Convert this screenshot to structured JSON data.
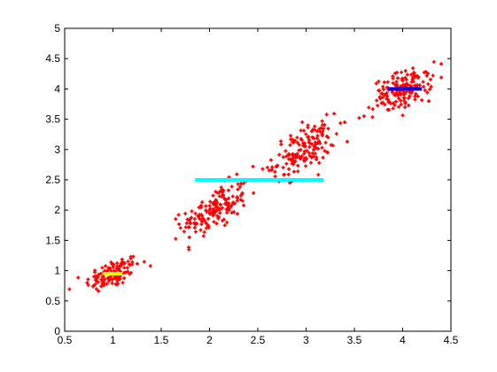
{
  "chart_data": {
    "type": "scatter",
    "xlim": [
      0.5,
      4.5
    ],
    "ylim": [
      0,
      5
    ],
    "xticks": [
      "0.5",
      "1",
      "1.5",
      "2",
      "2.5",
      "3",
      "3.5",
      "4",
      "4.5"
    ],
    "yticks": [
      "0",
      "0.5",
      "1",
      "1.5",
      "2",
      "2.5",
      "3",
      "3.5",
      "4",
      "4.5",
      "5"
    ],
    "grid": false,
    "legend": "none",
    "point_color": "#ff0000",
    "clusters": [
      {
        "center": [
          1.0,
          0.95
        ],
        "spread": [
          0.14,
          0.14
        ],
        "corr": 0.55,
        "count": 120,
        "x_range": [
          0.55,
          1.5
        ],
        "y_range": [
          0.45,
          1.55
        ]
      },
      {
        "center": [
          2.05,
          2.0
        ],
        "spread": [
          0.17,
          0.22
        ],
        "corr": 0.6,
        "count": 160,
        "x_range": [
          1.65,
          2.5
        ],
        "y_range": [
          1.35,
          2.75
        ]
      },
      {
        "center": [
          2.98,
          3.0
        ],
        "spread": [
          0.16,
          0.22
        ],
        "corr": 0.55,
        "count": 160,
        "x_range": [
          2.6,
          3.55
        ],
        "y_range": [
          2.45,
          3.6
        ]
      },
      {
        "center": [
          4.0,
          3.98
        ],
        "spread": [
          0.15,
          0.17
        ],
        "corr": 0.45,
        "count": 160,
        "x_range": [
          3.55,
          4.4
        ],
        "y_range": [
          3.45,
          4.7
        ]
      }
    ],
    "extra_points": [
      [
        2.45,
        2.72
      ],
      [
        2.55,
        2.68
      ],
      [
        2.38,
        2.48
      ],
      [
        3.55,
        3.52
      ],
      [
        3.6,
        3.55
      ],
      [
        3.4,
        3.45
      ]
    ],
    "segments": [
      {
        "x": [
          0.9,
          1.1
        ],
        "y": 0.95,
        "color": "#ffff00"
      },
      {
        "x": [
          1.85,
          3.18
        ],
        "y": 2.5,
        "color": "#00ffff"
      },
      {
        "x": [
          3.85,
          4.2
        ],
        "y": 4.0,
        "color": "#0000ff"
      }
    ]
  }
}
